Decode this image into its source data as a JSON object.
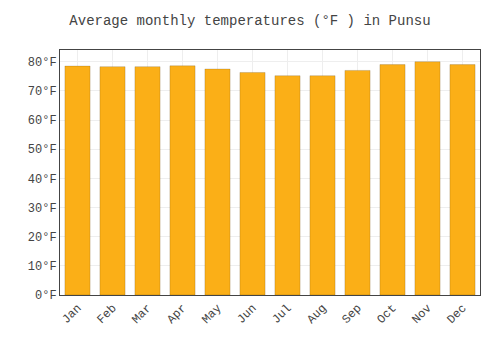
{
  "chart_data": {
    "type": "bar",
    "title": "Average monthly temperatures (°F ) in Punsu",
    "categories": [
      "Jan",
      "Feb",
      "Mar",
      "Apr",
      "May",
      "Jun",
      "Jul",
      "Aug",
      "Sep",
      "Oct",
      "Nov",
      "Dec"
    ],
    "values": [
      78.5,
      78.3,
      78.3,
      78.6,
      77.5,
      76.3,
      75.2,
      75.2,
      77.0,
      79.0,
      80.0,
      79.0
    ],
    "color": "#FBAF17",
    "ylim": [
      0,
      84
    ],
    "yticks": [
      {
        "value": 0,
        "label": "0°F"
      },
      {
        "value": 10,
        "label": "10°F"
      },
      {
        "value": 20,
        "label": "20°F"
      },
      {
        "value": 30,
        "label": "30°F"
      },
      {
        "value": 40,
        "label": "40°F"
      },
      {
        "value": 50,
        "label": "50°F"
      },
      {
        "value": 60,
        "label": "60°F"
      },
      {
        "value": 70,
        "label": "70°F"
      },
      {
        "value": 80,
        "label": "80°F"
      }
    ],
    "grid": true
  }
}
